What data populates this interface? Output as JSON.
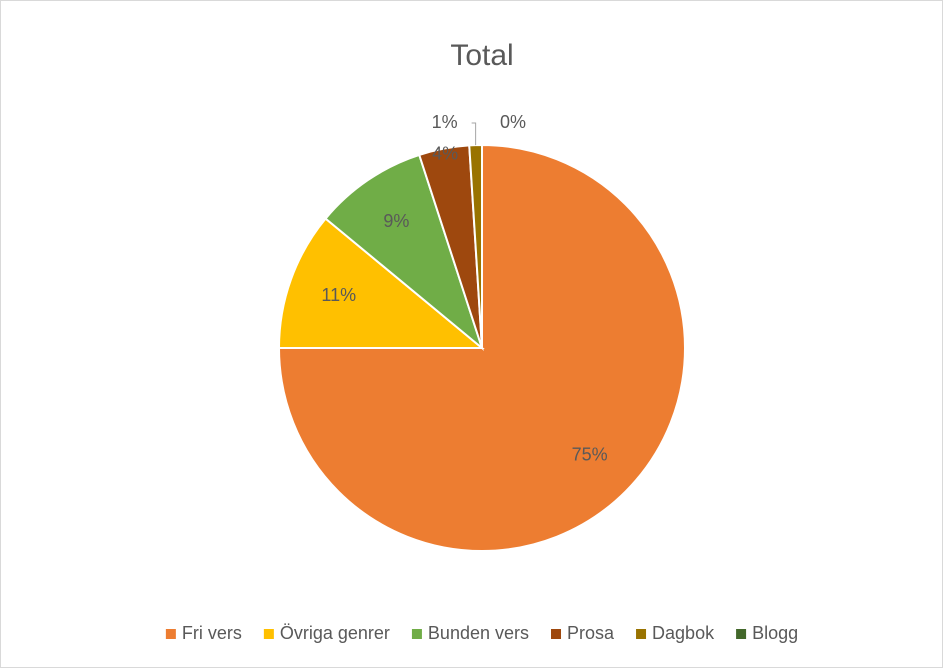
{
  "chart_data": {
    "type": "pie",
    "title": "Total",
    "categories": [
      "Fri vers",
      "Övriga genrer",
      "Bunden vers",
      "Prosa",
      "Dagbok",
      "Blogg"
    ],
    "values": [
      75,
      11,
      9,
      4,
      1,
      0
    ],
    "value_labels": [
      "75%",
      "11%",
      "9%",
      "4%",
      "1%",
      "0%"
    ],
    "colors": [
      "#ED7D31",
      "#FFC000",
      "#70AD47",
      "#9E480E",
      "#997300",
      "#43682B"
    ],
    "legend": "bottom"
  }
}
